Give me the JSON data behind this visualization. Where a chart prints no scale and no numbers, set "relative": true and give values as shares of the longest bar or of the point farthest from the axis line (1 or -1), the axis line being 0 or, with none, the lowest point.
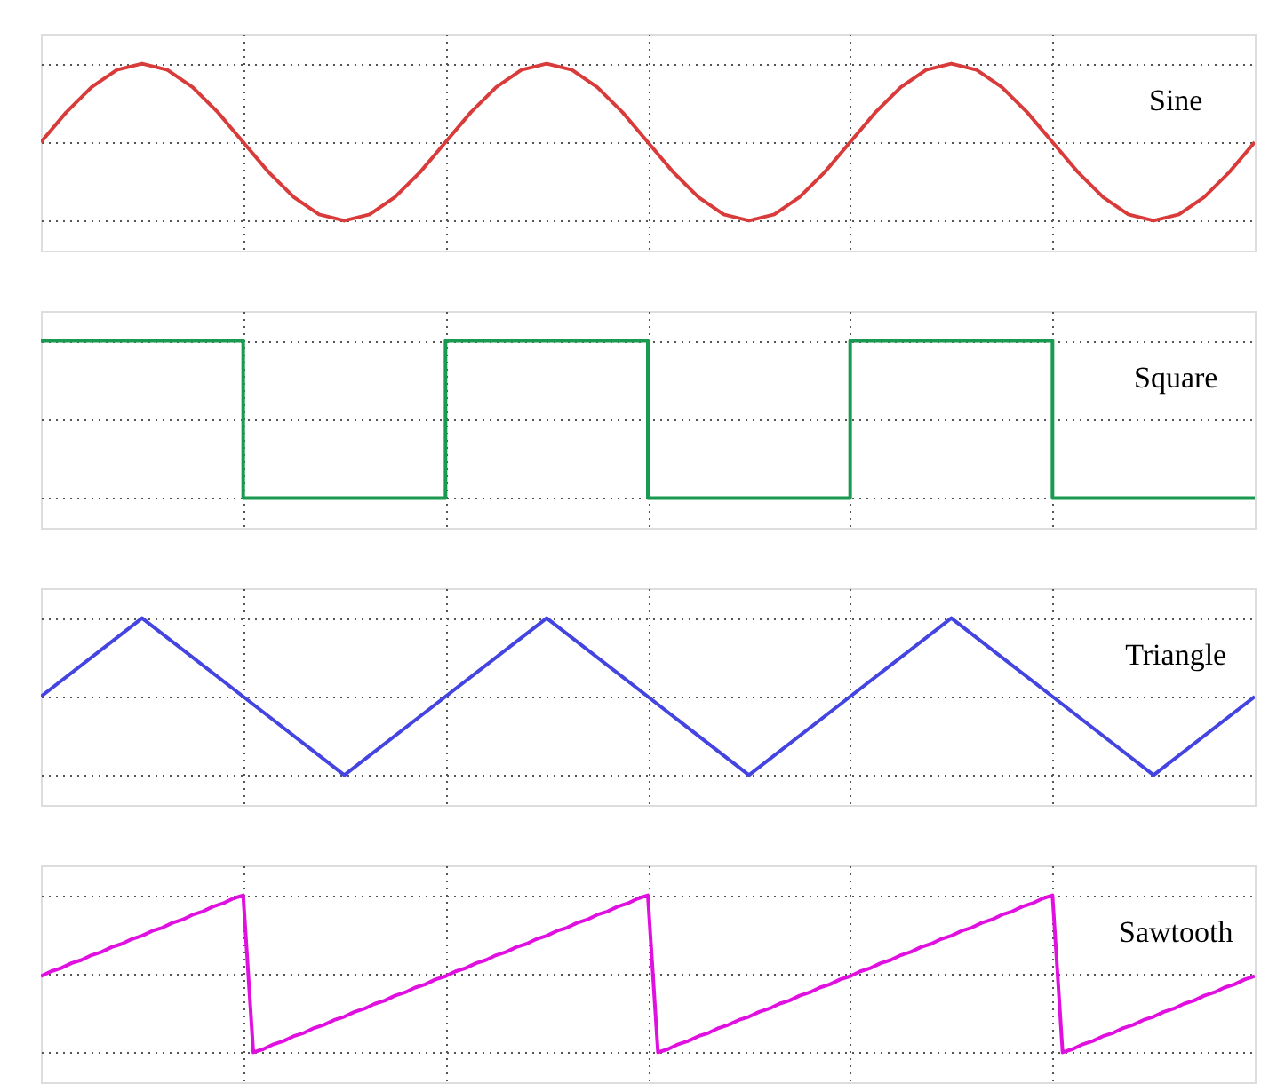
{
  "chart_data": [
    {
      "type": "line",
      "relative": true,
      "grid": true,
      "legend": false,
      "tick_labels": false,
      "categories": [
        null,
        null,
        null,
        null,
        null,
        null,
        null,
        null,
        null,
        null,
        null,
        null,
        null,
        null,
        null,
        null,
        null,
        null,
        null,
        null,
        null,
        null,
        null,
        null,
        null,
        null,
        null,
        null,
        null,
        null,
        null,
        null,
        null,
        null,
        null,
        null,
        null,
        null,
        null,
        null,
        null,
        null,
        null,
        null,
        null,
        null,
        null,
        null,
        null
      ],
      "series": [
        {
          "name": "Sine",
          "color": "#d93b3b",
          "values": [
            0.5,
            0.69,
            0.85,
            0.96,
            1,
            0.96,
            0.85,
            0.69,
            0.5,
            0.31,
            0.15,
            0.04,
            0,
            0.04,
            0.15,
            0.31,
            0.5,
            0.69,
            0.85,
            0.96,
            1,
            0.96,
            0.85,
            0.69,
            0.5,
            0.31,
            0.15,
            0.04,
            0,
            0.04,
            0.15,
            0.31,
            0.5,
            0.69,
            0.85,
            0.96,
            1,
            0.96,
            0.85,
            0.69,
            0.5,
            0.31,
            0.15,
            0.04,
            0,
            0.04,
            0.15,
            0.31,
            0.5
          ]
        }
      ]
    },
    {
      "type": "step",
      "relative": true,
      "grid": true,
      "legend": false,
      "tick_labels": false,
      "categories": [
        null,
        null,
        null,
        null,
        null,
        null,
        null
      ],
      "series": [
        {
          "name": "Square",
          "color": "#1a9a50",
          "values": [
            1,
            0,
            1,
            0,
            1,
            0,
            0
          ]
        }
      ]
    },
    {
      "type": "line",
      "relative": true,
      "grid": true,
      "legend": false,
      "tick_labels": false,
      "categories": [
        null,
        null,
        null,
        null,
        null,
        null,
        null,
        null,
        null,
        null,
        null,
        null,
        null
      ],
      "series": [
        {
          "name": "Triangle",
          "color": "#4444e0",
          "values": [
            0.5,
            1,
            0.5,
            0,
            0.5,
            1,
            0.5,
            0,
            0.5,
            1,
            0.5,
            0,
            0.5
          ]
        }
      ]
    },
    {
      "type": "line",
      "relative": true,
      "grid": true,
      "legend": false,
      "tick_labels": false,
      "categories": [
        null,
        null,
        null,
        null,
        null,
        null,
        null,
        null,
        null,
        null,
        null,
        null,
        null,
        null,
        null,
        null,
        null,
        null,
        null,
        null,
        null,
        null,
        null,
        null,
        null,
        null,
        null,
        null,
        null,
        null,
        null,
        null,
        null,
        null,
        null,
        null,
        null,
        null,
        null,
        null,
        null,
        null,
        null,
        null,
        null,
        null,
        null,
        null,
        null,
        null,
        null,
        null,
        null,
        null,
        null,
        null,
        null,
        null,
        null,
        null,
        null,
        null,
        null,
        null,
        null,
        null,
        null,
        null,
        null,
        null,
        null,
        null,
        null,
        null,
        null,
        null,
        null,
        null,
        null,
        null,
        null,
        null,
        null,
        null,
        null,
        null,
        null,
        null,
        null,
        null,
        null,
        null,
        null,
        null,
        null,
        null,
        null,
        null,
        null,
        null,
        null,
        null,
        null,
        null,
        null,
        null,
        null,
        null,
        null,
        null,
        null,
        null,
        null,
        null,
        null,
        null,
        null,
        null,
        null,
        null,
        null
      ],
      "series": [
        {
          "name": "Sawtooth",
          "color": "#e010e0",
          "values": [
            0.5,
            0.53,
            0.55,
            0.58,
            0.6,
            0.63,
            0.65,
            0.68,
            0.7,
            0.73,
            0.75,
            0.78,
            0.8,
            0.83,
            0.85,
            0.88,
            0.9,
            0.93,
            0.95,
            0.98,
            1,
            0.03,
            0.05,
            0.08,
            0.1,
            0.13,
            0.15,
            0.18,
            0.2,
            0.23,
            0.25,
            0.28,
            0.3,
            0.33,
            0.35,
            0.38,
            0.4,
            0.43,
            0.45,
            0.48,
            0.5,
            0.53,
            0.55,
            0.58,
            0.6,
            0.63,
            0.65,
            0.68,
            0.7,
            0.73,
            0.75,
            0.78,
            0.8,
            0.83,
            0.85,
            0.88,
            0.9,
            0.93,
            0.95,
            0.98,
            1,
            0.03,
            0.05,
            0.08,
            0.1,
            0.13,
            0.15,
            0.18,
            0.2,
            0.23,
            0.25,
            0.28,
            0.3,
            0.33,
            0.35,
            0.38,
            0.4,
            0.43,
            0.45,
            0.48,
            0.5,
            0.53,
            0.55,
            0.58,
            0.6,
            0.63,
            0.65,
            0.68,
            0.7,
            0.73,
            0.75,
            0.78,
            0.8,
            0.83,
            0.85,
            0.88,
            0.9,
            0.93,
            0.95,
            0.98,
            1,
            0.03,
            0.05,
            0.08,
            0.1,
            0.13,
            0.15,
            0.18,
            0.2,
            0.23,
            0.25,
            0.28,
            0.3,
            0.33,
            0.35,
            0.38,
            0.4,
            0.43,
            0.45,
            0.48,
            0.5
          ]
        }
      ]
    }
  ]
}
